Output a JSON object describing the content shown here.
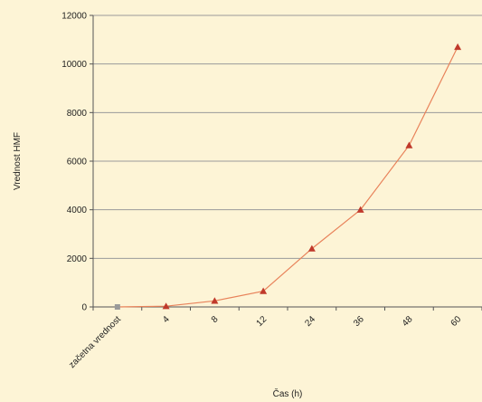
{
  "chart_data": {
    "type": "line",
    "title": "",
    "xlabel": "Čas (h)",
    "ylabel": "Vrednost HMF",
    "categories": [
      "začetna vrednost",
      "4",
      "8",
      "12",
      "24",
      "36",
      "48",
      "60"
    ],
    "series": [
      {
        "values": [
          0,
          30,
          250,
          650,
          2400,
          4000,
          6650,
          10700
        ]
      }
    ],
    "first_point_marker": "square",
    "ylim": [
      0,
      12000
    ],
    "yticks": [
      0,
      2000,
      4000,
      6000,
      8000,
      10000,
      12000
    ],
    "grid": true,
    "legend": "none",
    "colors": {
      "background": "#fdf4d6",
      "plot_area": "#fdf4d6",
      "line": "#e8825a",
      "marker": "#c0392b",
      "first_marker": "#9a9a9a",
      "grid": "#9a9a9a",
      "axis": "#555555"
    }
  }
}
